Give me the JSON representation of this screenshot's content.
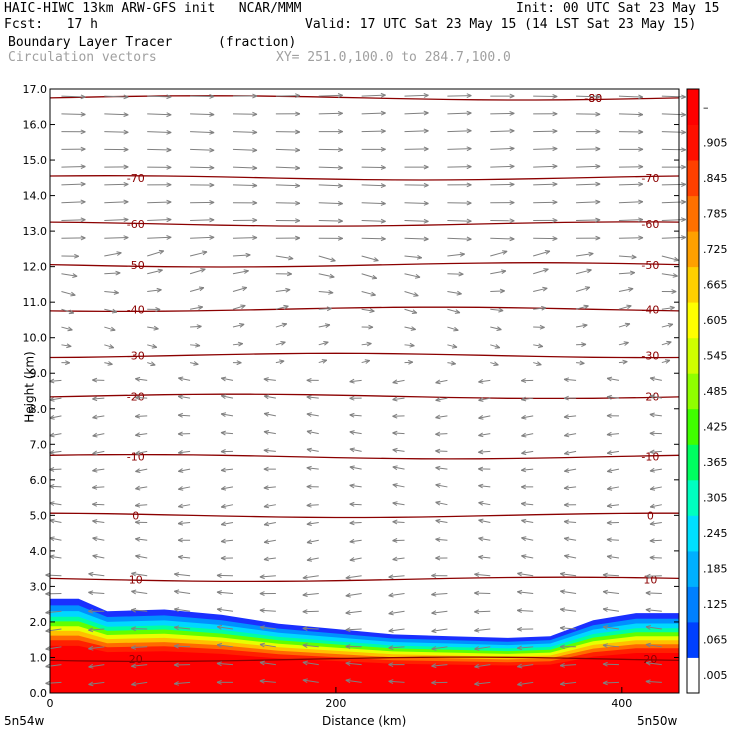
{
  "header": {
    "model_line": "HAIC-HIWC 13km ARW-GFS init   NCAR/MMM",
    "init": "Init: 00 UTC Sat 23 May 15",
    "fcst": "Fcst:   17 h",
    "valid": "Valid: 17 UTC Sat 23 May 15 (14 LST Sat 23 May 15)",
    "field": "Boundary Layer Tracer",
    "units": "(fraction)",
    "vectors": "Circulation vectors",
    "xy": "XY= 251.0,100.0 to 284.7,100.0"
  },
  "colors": {
    "contour": "#8b0000",
    "vector": "#808080",
    "axis": "#000000"
  },
  "chart_data": {
    "type": "heatmap",
    "title": "Boundary Layer Tracer",
    "units": "(fraction)",
    "ylabel": "Height (km)",
    "xlabel": "Distance (km)",
    "ylim": [
      0,
      17
    ],
    "xlim": [
      0,
      440
    ],
    "yticks": [
      "0.0",
      "1.0",
      "2.0",
      "3.0",
      "4.0",
      "5.0",
      "6.0",
      "7.0",
      "8.0",
      "9.0",
      "10.0",
      "11.0",
      "12.0",
      "13.0",
      "14.0",
      "15.0",
      "16.0",
      "17.0"
    ],
    "xticks": [
      "0",
      "200",
      "400"
    ],
    "x_end_labels": [
      "5n54w",
      "5n50w"
    ],
    "colorbar": {
      "labels": [
        ".005",
        ".065",
        ".125",
        ".185",
        ".245",
        ".305",
        ".365",
        ".425",
        ".485",
        ".545",
        ".605",
        ".665",
        ".725",
        ".785",
        ".845",
        ".905",
        "–"
      ],
      "colors": [
        "#ffffff",
        "#0040ff",
        "#0080ff",
        "#00b0ff",
        "#00e0ff",
        "#00ffc0",
        "#00ff60",
        "#40ff00",
        "#90ff00",
        "#d0ff00",
        "#ffff00",
        "#ffd000",
        "#ffa000",
        "#ff7000",
        "#ff4000",
        "#ff1000",
        "#ff0000"
      ]
    },
    "tracer_top_km": [
      [
        0,
        2.65
      ],
      [
        20,
        2.65
      ],
      [
        40,
        2.3
      ],
      [
        80,
        2.35
      ],
      [
        120,
        2.2
      ],
      [
        160,
        1.95
      ],
      [
        200,
        1.8
      ],
      [
        240,
        1.65
      ],
      [
        280,
        1.6
      ],
      [
        320,
        1.55
      ],
      [
        350,
        1.6
      ],
      [
        380,
        2.05
      ],
      [
        410,
        2.25
      ],
      [
        440,
        2.25
      ]
    ],
    "temperature_contours": [
      {
        "label": "-80",
        "height_km": 16.75
      },
      {
        "label": "-70",
        "height_km": 14.5
      },
      {
        "label": "-60",
        "height_km": 13.2
      },
      {
        "label": "-50",
        "height_km": 12.05
      },
      {
        "label": "-40",
        "height_km": 10.8
      },
      {
        "label": "-30",
        "height_km": 9.5
      },
      {
        "label": "-20",
        "height_km": 8.35
      },
      {
        "label": "-10",
        "height_km": 6.65
      },
      {
        "label": "0",
        "height_km": 5.0
      },
      {
        "label": "10",
        "height_km": 3.2
      },
      {
        "label": "20",
        "height_km": 0.95
      }
    ]
  }
}
